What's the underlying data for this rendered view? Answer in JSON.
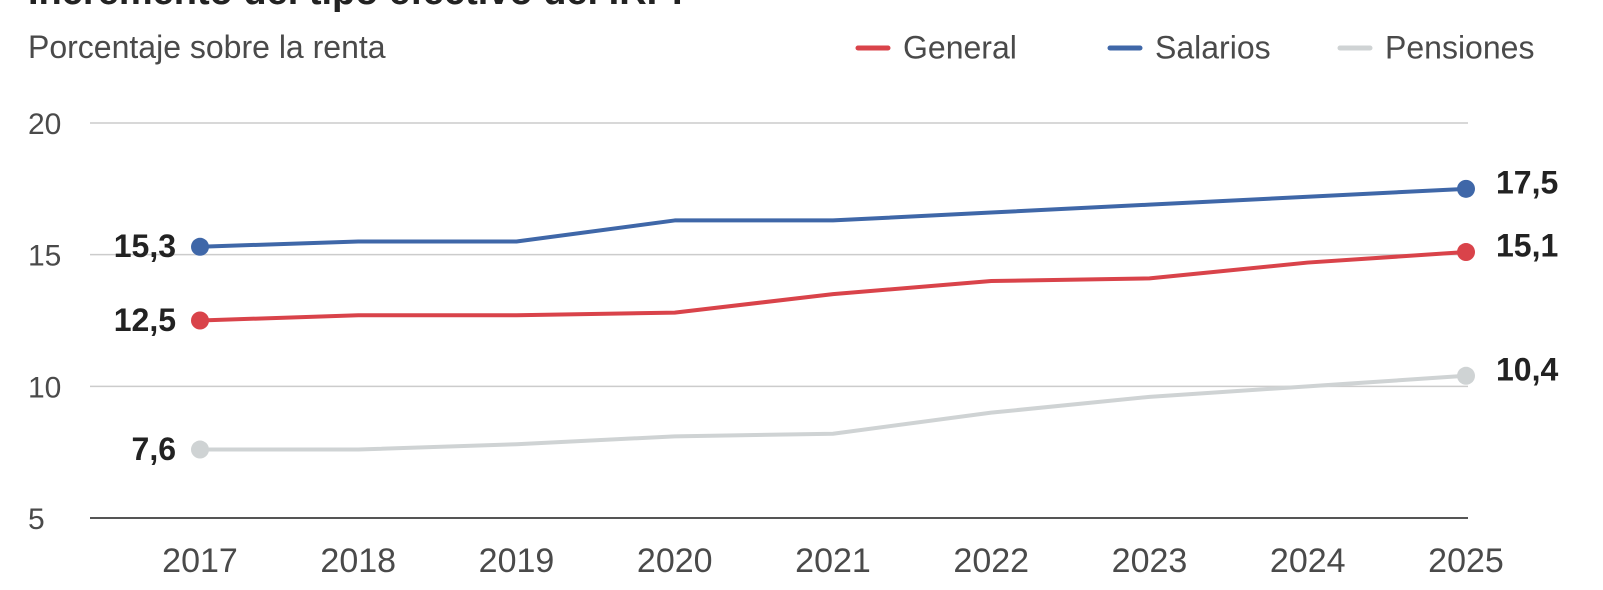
{
  "title": "Incremento del tipo efectivo del IRPF",
  "subtitle": "Porcentaje sobre la renta",
  "colors": {
    "general": "#d9434a",
    "salarios": "#3f67a8",
    "pensiones": "#cfd3d4",
    "grid": "#cccccc",
    "axis": "#555555"
  },
  "chart_data": {
    "type": "line",
    "title": "Incremento del tipo efectivo del IRPF",
    "subtitle": "Porcentaje sobre la renta",
    "xlabel": "",
    "ylabel": "",
    "x": [
      "2017",
      "2018",
      "2019",
      "2020",
      "2021",
      "2022",
      "2023",
      "2024",
      "2025"
    ],
    "ylim": [
      5,
      20
    ],
    "yticks": [
      "5",
      "10",
      "15",
      "20"
    ],
    "grid": true,
    "legend_position": "top-right",
    "series": [
      {
        "name": "General",
        "color": "#d9434a",
        "values": [
          12.5,
          12.7,
          12.7,
          12.8,
          13.5,
          14.0,
          14.1,
          14.7,
          15.1
        ],
        "labels": {
          "first": "12,5",
          "last": "15,1"
        }
      },
      {
        "name": "Salarios",
        "color": "#3f67a8",
        "values": [
          15.3,
          15.5,
          15.5,
          16.3,
          16.3,
          16.6,
          16.9,
          17.2,
          17.5
        ],
        "labels": {
          "first": "15,3",
          "last": "17,5"
        }
      },
      {
        "name": "Pensiones",
        "color": "#cfd3d4",
        "values": [
          7.6,
          7.6,
          7.8,
          8.1,
          8.2,
          9.0,
          9.6,
          10.0,
          10.4
        ],
        "labels": {
          "first": "7,6",
          "last": "10,4"
        }
      }
    ]
  }
}
